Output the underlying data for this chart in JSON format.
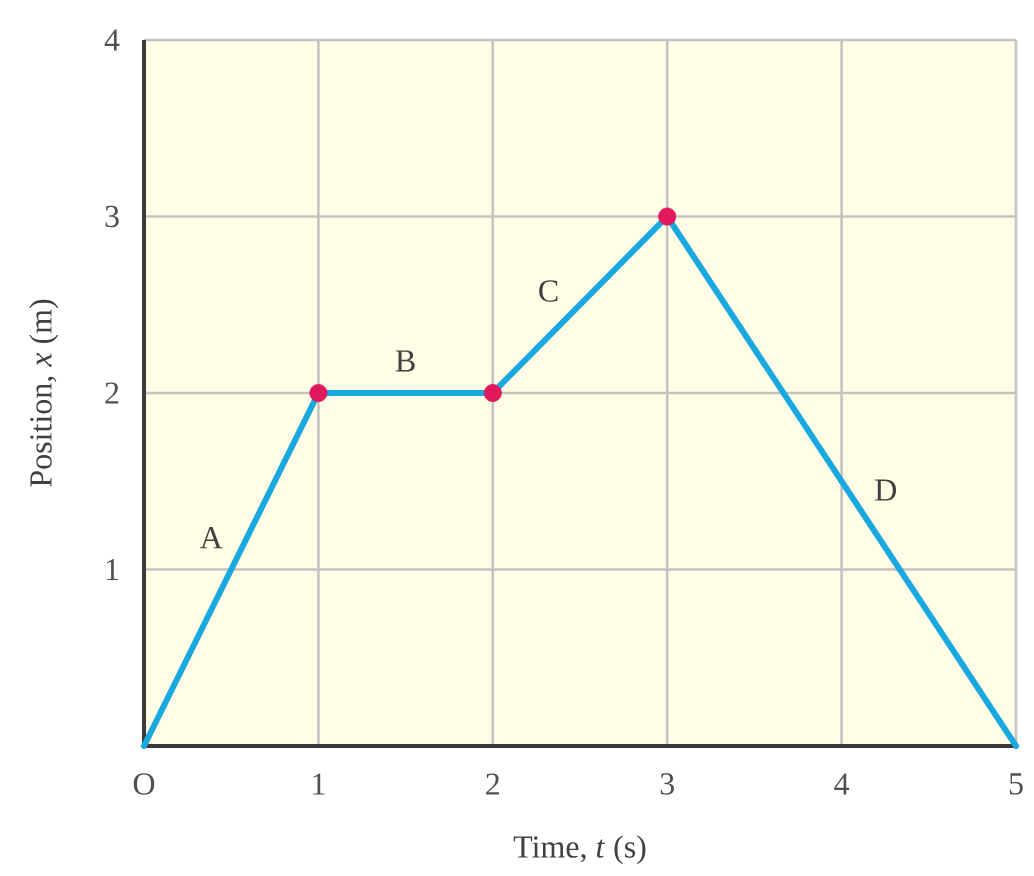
{
  "chart_data": {
    "type": "line",
    "xlabel": "Time, *t* (s)",
    "ylabel": "Position, *x* (m)",
    "xlim": [
      0,
      5
    ],
    "ylim": [
      0,
      4
    ],
    "xticks": [
      {
        "value": 0,
        "label": "O"
      },
      1,
      2,
      3,
      4,
      5
    ],
    "yticks": [
      1,
      2,
      3,
      4
    ],
    "grid": true,
    "series": [
      {
        "color": "#1aa8e0",
        "x": [
          0,
          1,
          2,
          3,
          5
        ],
        "values": [
          0,
          2,
          2,
          3,
          0
        ],
        "marker": "none",
        "line_style": "solid"
      },
      {
        "type": "scatter",
        "color": "#e0185c",
        "x": [
          1,
          2,
          3
        ],
        "values": [
          2,
          2,
          3
        ],
        "marker": "circle"
      }
    ],
    "annotations": [
      {
        "text": "A",
        "x": 0.55,
        "y": 1.1
      },
      {
        "text": "B",
        "x": 1.5,
        "y": 2
      },
      {
        "text": "C",
        "x": 2.45,
        "y": 2.45
      },
      {
        "text": "D",
        "x": 4.1,
        "y": 1.35
      }
    ]
  }
}
